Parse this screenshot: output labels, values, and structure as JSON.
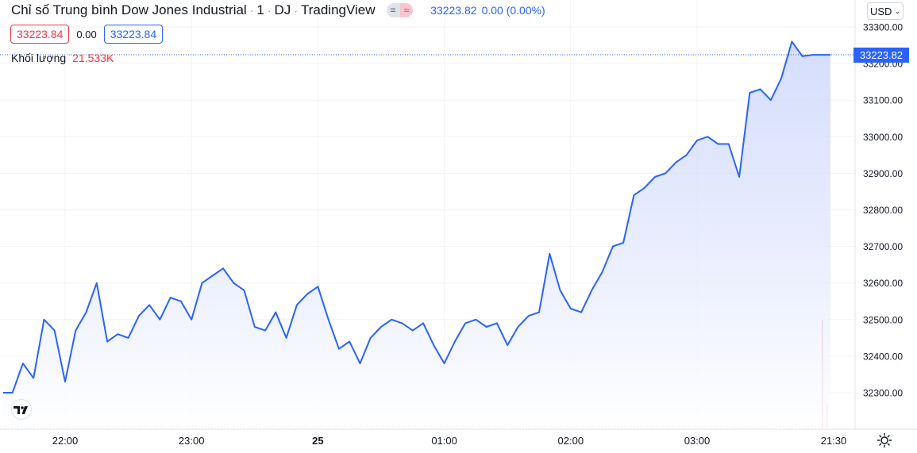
{
  "header": {
    "title": "Chỉ số Trung bình Dow Jones Industrial",
    "interval": "1",
    "exchange": "DJ",
    "source": "TradingView",
    "last_price": "33223.82",
    "change": "0.00 (0.00%)",
    "pill_a": "=",
    "pill_b": "≈"
  },
  "ohlc": {
    "bid": "33223.84",
    "spread": "0.00",
    "ask": "33223.84"
  },
  "volume": {
    "label": "Khối lượng",
    "value": "21.533K"
  },
  "currency": {
    "label": "USD",
    "chevron": "⌄"
  },
  "price_tag": "33223.82",
  "colors": {
    "line": "#2962ff",
    "area_top": "#c7d3fb",
    "grid": "#f0f3fa",
    "red": "#f23645",
    "volume": "#9ec1bd"
  },
  "chart_data": {
    "type": "area",
    "title": "Chỉ số Trung bình Dow Jones Industrial",
    "x_ticks": [
      "22:00",
      "23:00",
      "25",
      "01:00",
      "02:00",
      "03:00",
      "21:30"
    ],
    "y_ticks": [
      "33300.00",
      "33200.00",
      "33100.00",
      "33000.00",
      "32900.00",
      "32800.00",
      "32700.00",
      "32600.00",
      "32500.00",
      "32400.00",
      "32300.00"
    ],
    "ylim": [
      32200,
      33320
    ],
    "grid": true,
    "x": [
      "21:35",
      "21:40",
      "21:45",
      "21:50",
      "21:55",
      "22:00",
      "22:05",
      "22:10",
      "22:15",
      "22:20",
      "22:25",
      "22:30",
      "22:35",
      "22:40",
      "22:45",
      "22:50",
      "22:55",
      "23:00",
      "23:05",
      "23:10",
      "23:15",
      "23:20",
      "23:25",
      "23:30",
      "23:35",
      "23:40",
      "23:45",
      "23:50",
      "23:55",
      "00:00",
      "00:05",
      "00:10",
      "00:15",
      "00:20",
      "00:25",
      "00:30",
      "00:35",
      "00:40",
      "00:45",
      "00:50",
      "00:55",
      "01:00",
      "01:05",
      "01:10",
      "01:15",
      "01:20",
      "01:25",
      "01:30",
      "01:35",
      "01:40",
      "01:45",
      "01:50",
      "01:55",
      "02:00",
      "02:05",
      "02:10",
      "02:15",
      "02:20",
      "02:25",
      "02:30",
      "02:35",
      "02:40",
      "02:45",
      "02:50",
      "02:55",
      "03:00",
      "03:05",
      "03:10",
      "03:15",
      "03:20",
      "03:25",
      "03:30",
      "03:35",
      "03:40",
      "03:45",
      "03:50",
      "03:55"
    ],
    "series": [
      {
        "values": [
          32300,
          32380,
          32340,
          32500,
          32470,
          32330,
          32470,
          32520,
          32600,
          32440,
          32460,
          32450,
          32510,
          32540,
          32500,
          32560,
          32550,
          32500,
          32600,
          32620,
          32640,
          32600,
          32580,
          32480,
          32470,
          32520,
          32450,
          32540,
          32570,
          32590,
          32500,
          32420,
          32440,
          32380,
          32450,
          32480,
          32500,
          32490,
          32470,
          32490,
          32430,
          32380,
          32440,
          32490,
          32500,
          32480,
          32490,
          32430,
          32480,
          32510,
          32520,
          32680,
          32580,
          32530,
          32520,
          32580,
          32630,
          32700,
          32710,
          32840,
          32860,
          32890,
          32900,
          32930,
          32950,
          32990,
          33000,
          32980,
          32980,
          32890,
          33120,
          33130,
          33100,
          33160,
          33260,
          33220,
          33223.82
        ]
      }
    ],
    "volume": {
      "label": "Khối lượng",
      "last": "21.533K"
    }
  }
}
